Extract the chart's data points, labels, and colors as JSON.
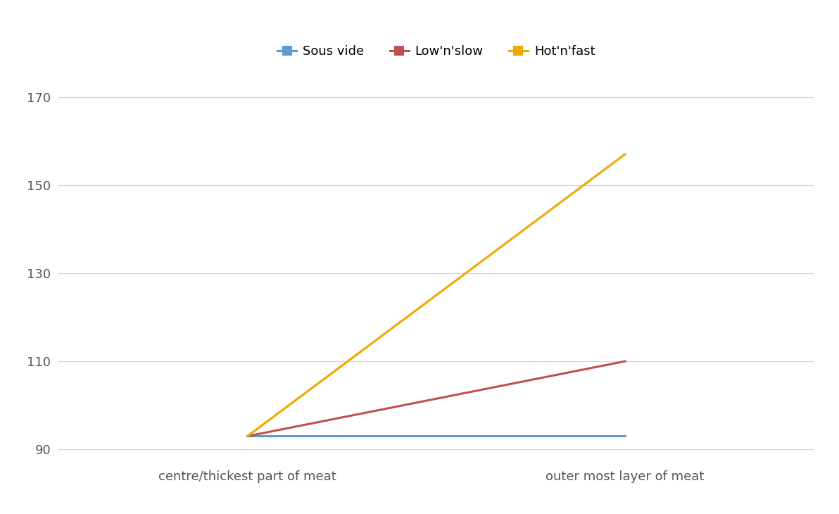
{
  "x_labels": [
    "centre/thickest part of meat",
    "outer most layer of meat"
  ],
  "series": [
    {
      "name": "Sous vide",
      "color": "#5b9bd5",
      "values": [
        93,
        93
      ]
    },
    {
      "name": "Low'n'slow",
      "color": "#c0504d",
      "values": [
        93,
        110
      ]
    },
    {
      "name": "Hot'n'fast",
      "color": "#f0a800",
      "values": [
        93,
        157
      ]
    }
  ],
  "x_positions": [
    0.25,
    0.75
  ],
  "xlim": [
    0.0,
    1.0
  ],
  "ylim": [
    87,
    178
  ],
  "yticks": [
    90,
    110,
    130,
    150,
    170
  ],
  "grid_color": "#d3d3d3",
  "background_color": "#ffffff",
  "legend_marker": "s",
  "line_width": 2.2,
  "tick_fontsize": 13,
  "legend_fontsize": 13
}
